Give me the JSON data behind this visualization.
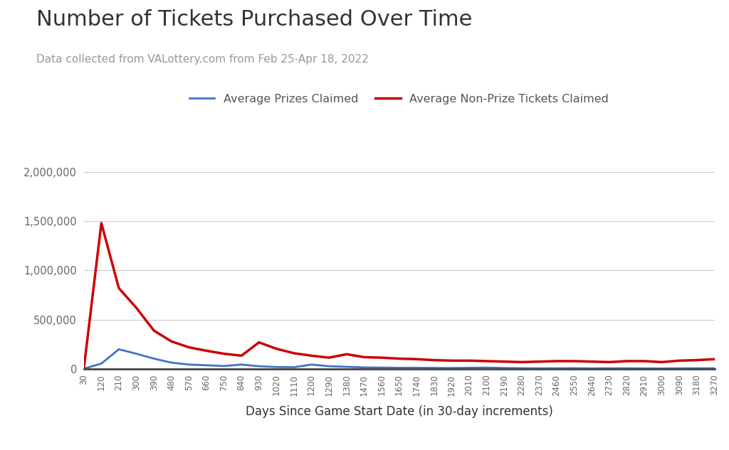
{
  "title": "Number of Tickets Purchased Over Time",
  "subtitle": "Data collected from VALottery.com from Feb 25-Apr 18, 2022",
  "xlabel": "Days Since Game Start Date (in 30-day increments)",
  "legend_labels": [
    "Average Prizes Claimed",
    "Average Non-Prize Tickets Claimed"
  ],
  "line_colors": [
    "#4472C4",
    "#CC0000"
  ],
  "background_color": "#ffffff",
  "x_ticks": [
    30,
    120,
    210,
    300,
    390,
    480,
    570,
    660,
    750,
    840,
    930,
    1020,
    1110,
    1200,
    1290,
    1380,
    1470,
    1560,
    1650,
    1740,
    1830,
    1920,
    2010,
    2100,
    2190,
    2280,
    2370,
    2460,
    2550,
    2640,
    2730,
    2820,
    2910,
    3000,
    3090,
    3180,
    3270
  ],
  "ylim": [
    0,
    2100000
  ],
  "y_ticks": [
    0,
    500000,
    1000000,
    1500000,
    2000000
  ],
  "prizes_data": [
    3000,
    55000,
    200000,
    155000,
    105000,
    65000,
    45000,
    38000,
    30000,
    45000,
    28000,
    20000,
    18000,
    45000,
    28000,
    22000,
    16000,
    14000,
    12000,
    12000,
    11000,
    10000,
    12000,
    14000,
    10000,
    8000,
    7000,
    7000,
    8000,
    6000,
    7000,
    7000,
    6000,
    5000,
    7000,
    7000,
    7000
  ],
  "non_prize_data": [
    5000,
    1480000,
    820000,
    620000,
    390000,
    280000,
    220000,
    185000,
    155000,
    135000,
    270000,
    205000,
    160000,
    135000,
    115000,
    150000,
    120000,
    115000,
    105000,
    100000,
    90000,
    85000,
    85000,
    80000,
    75000,
    70000,
    75000,
    80000,
    80000,
    75000,
    70000,
    80000,
    80000,
    70000,
    85000,
    90000,
    100000
  ]
}
